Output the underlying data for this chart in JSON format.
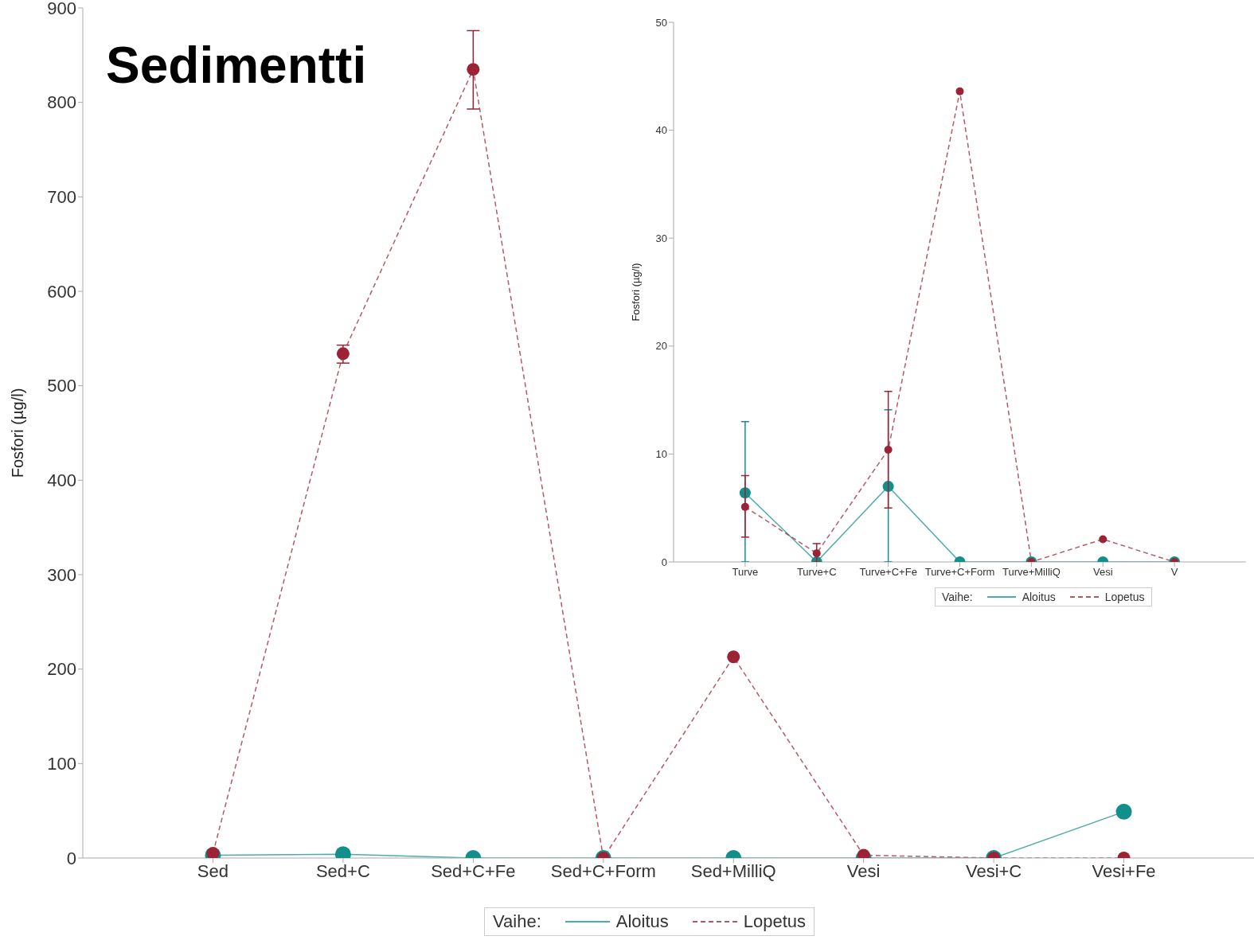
{
  "chart_data": [
    {
      "type": "line",
      "title": "Sedimentti",
      "ylabel": "Fosfori (µg/l)",
      "legend_title": "Vaihe:",
      "legend": "bottom",
      "marker": "circle",
      "categories": [
        "Sed",
        "Sed+C",
        "Sed+C+Fe",
        "Sed+C+Form",
        "Sed+MilliQ",
        "Vesi",
        "Vesi+C",
        "Vesi+Fe"
      ],
      "ylim": [
        0,
        900
      ],
      "yticks": [
        0,
        100,
        200,
        300,
        400,
        500,
        600,
        700,
        800,
        900
      ],
      "grid": false,
      "series": [
        {
          "name": "Aloitus",
          "color": "#128f8b",
          "line_style": "solid",
          "values": [
            3,
            4,
            0,
            0,
            0,
            0,
            0,
            49
          ]
        },
        {
          "name": "Lopetus",
          "color": "#9b2335",
          "line_style": "dashed",
          "values": [
            5,
            534,
            835,
            0,
            213,
            3,
            0,
            0
          ],
          "errors": [
            null,
            [
              524,
              543
            ],
            [
              793,
              876
            ],
            null,
            null,
            null,
            null,
            null
          ]
        }
      ]
    },
    {
      "type": "line",
      "ylabel": "Fosfori (µg/l)",
      "legend_title": "Vaihe:",
      "legend": "bottom",
      "marker": "circle",
      "categories": [
        "Turve",
        "Turve+C",
        "Turve+C+Fe",
        "Turve+C+Form",
        "Turve+MilliQ",
        "Vesi",
        "V"
      ],
      "ylim": [
        0,
        50
      ],
      "yticks": [
        0,
        10,
        20,
        30,
        40,
        50
      ],
      "grid": false,
      "series": [
        {
          "name": "Aloitus",
          "color": "#128f8b",
          "line_style": "solid",
          "values": [
            6.4,
            0,
            7,
            0,
            0,
            0,
            0
          ],
          "errors": [
            [
              0,
              13
            ],
            null,
            [
              0,
              14.1
            ],
            null,
            null,
            null,
            null
          ]
        },
        {
          "name": "Lopetus",
          "color": "#9b2335",
          "line_style": "dashed",
          "values": [
            5.1,
            0.8,
            10.4,
            43.6,
            0,
            2.1,
            0
          ],
          "errors": [
            [
              2.3,
              8
            ],
            [
              0,
              1.7
            ],
            [
              5,
              15.8
            ],
            null,
            null,
            null,
            null
          ]
        }
      ]
    }
  ]
}
